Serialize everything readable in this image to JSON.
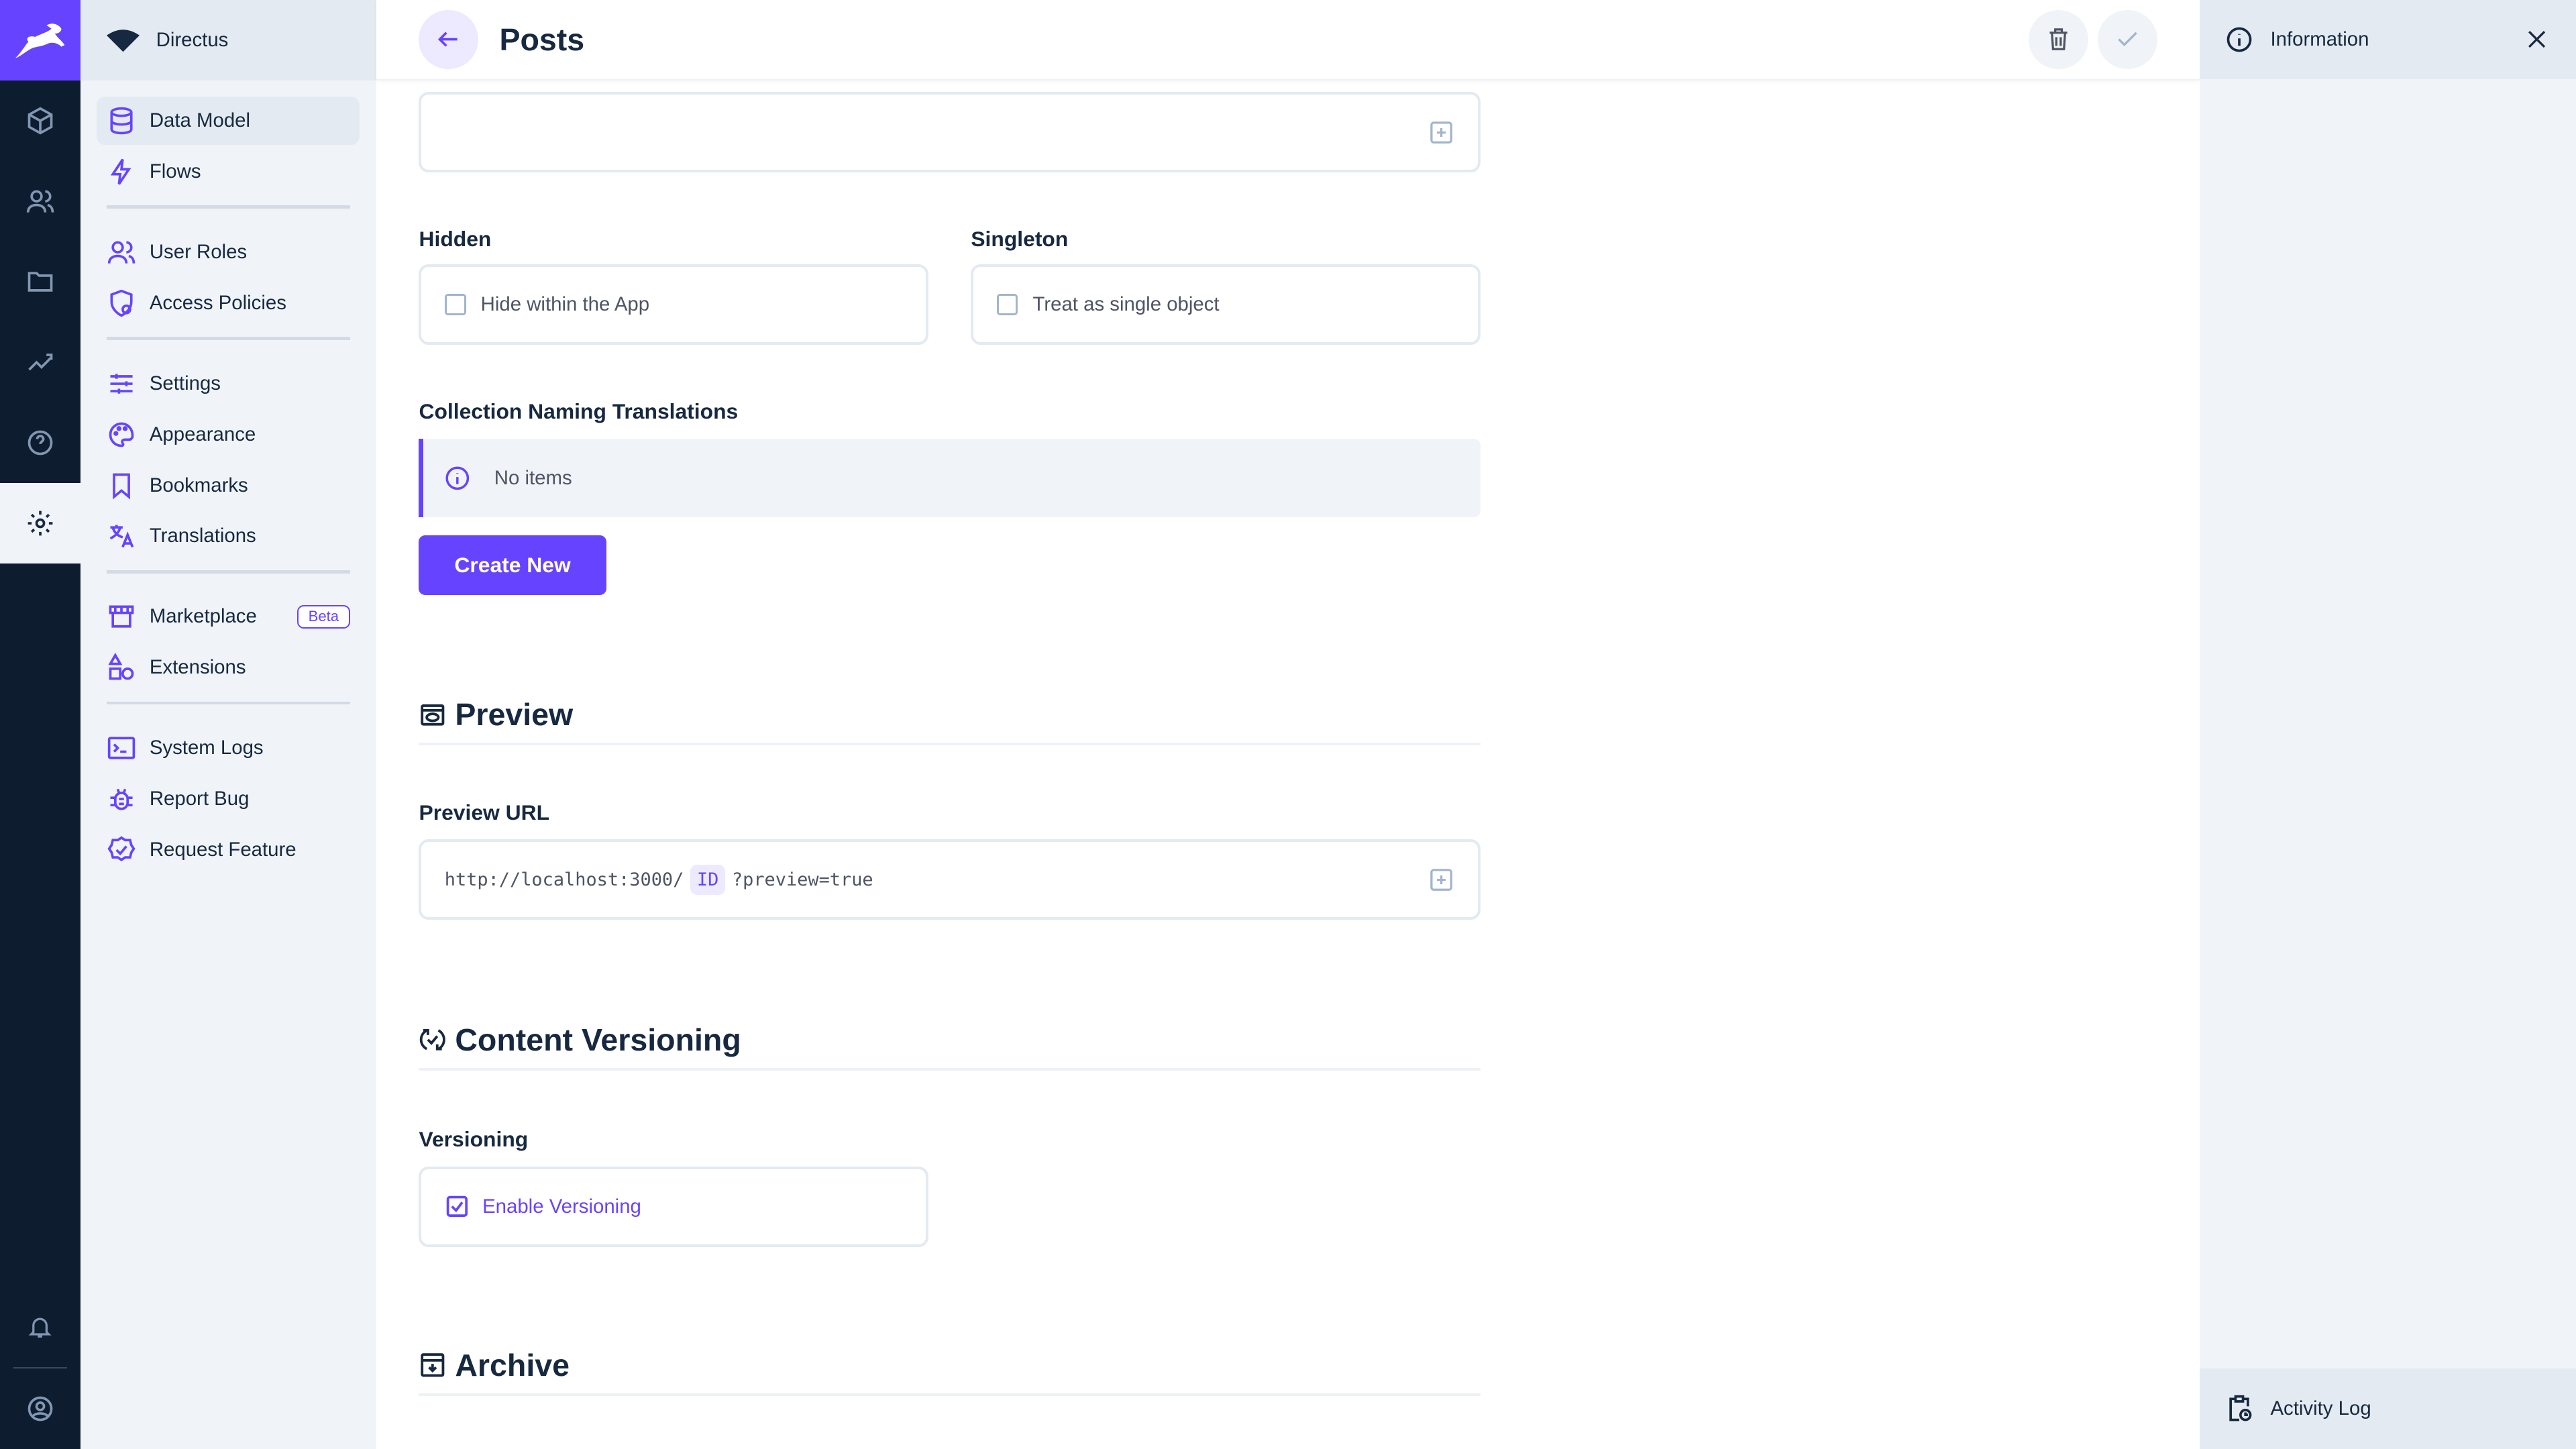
{
  "colors": {
    "primary": "#6644FF",
    "rail": "#0E1C2F",
    "text": "#172940"
  },
  "project": {
    "name": "Directus"
  },
  "rail": {
    "items": [
      "content-cube-icon",
      "users-icon",
      "files-folder-icon",
      "insights-chart-icon",
      "help-icon",
      "settings-gear-icon"
    ],
    "active": "settings-gear-icon"
  },
  "nav": {
    "items": [
      {
        "label": "Data Model",
        "icon": "database-icon",
        "active": true
      },
      {
        "label": "Flows",
        "icon": "bolt-icon"
      },
      {
        "label": "User Roles",
        "icon": "users-icon"
      },
      {
        "label": "Access Policies",
        "icon": "policy-shield-icon"
      },
      {
        "label": "Settings",
        "icon": "sliders-icon"
      },
      {
        "label": "Appearance",
        "icon": "palette-icon"
      },
      {
        "label": "Bookmarks",
        "icon": "bookmark-icon"
      },
      {
        "label": "Translations",
        "icon": "translate-icon"
      },
      {
        "label": "Marketplace",
        "icon": "store-icon",
        "badge": "Beta"
      },
      {
        "label": "Extensions",
        "icon": "shapes-icon"
      },
      {
        "label": "System Logs",
        "icon": "terminal-icon"
      },
      {
        "label": "Report Bug",
        "icon": "bug-icon"
      },
      {
        "label": "Request Feature",
        "icon": "verified-icon"
      }
    ]
  },
  "header": {
    "title": "Posts"
  },
  "form": {
    "hidden": {
      "label": "Hidden",
      "option": "Hide within the App",
      "checked": false
    },
    "singleton": {
      "label": "Singleton",
      "option": "Treat as single object",
      "checked": false
    },
    "translations": {
      "label": "Collection Naming Translations",
      "empty": "No items",
      "create": "Create New"
    },
    "preview": {
      "section": "Preview",
      "label": "Preview URL",
      "url_prefix": "http://localhost:3000/",
      "url_field": "ID",
      "url_suffix": "?preview=true"
    },
    "versioning": {
      "section": "Content Versioning",
      "label": "Versioning",
      "option": "Enable Versioning",
      "checked": true
    },
    "archive": {
      "section": "Archive"
    }
  },
  "sidebar": {
    "info": "Information",
    "activity": "Activity Log"
  }
}
